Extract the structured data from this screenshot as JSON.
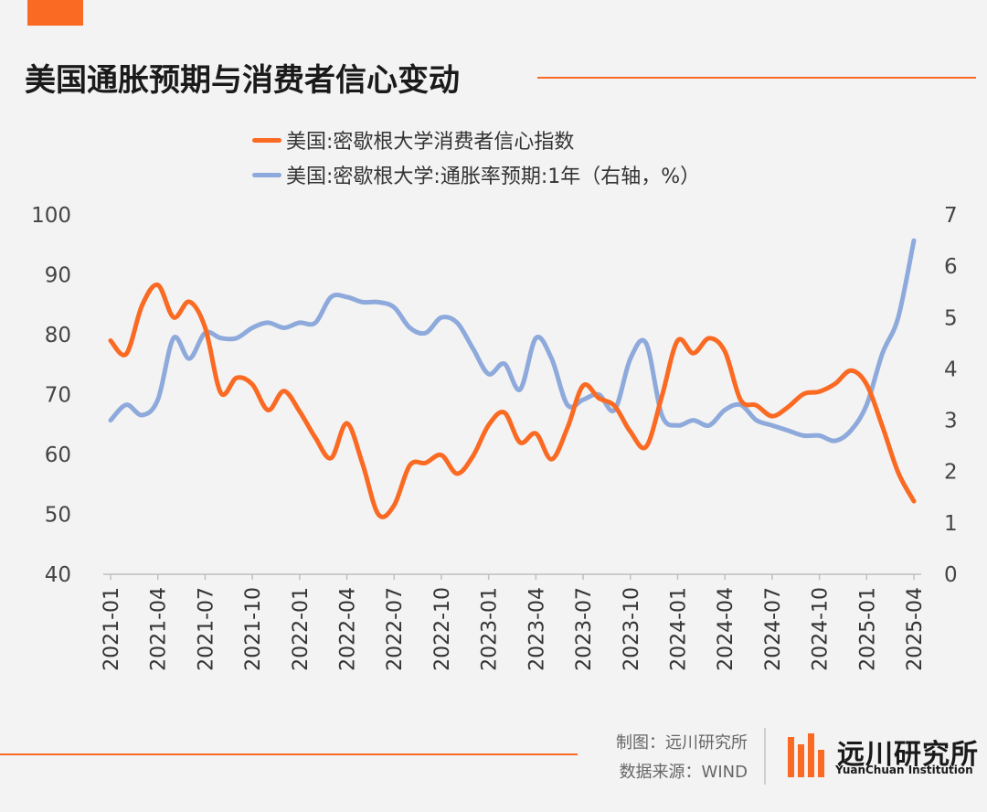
{
  "header": {
    "title": "美国通胀预期与消费者信心变动",
    "accent_color": "#fa6a23"
  },
  "chart_data": {
    "type": "line",
    "title": "美国通胀预期与消费者信心变动",
    "xlabel": "",
    "ylabel": "",
    "ylim": [
      40,
      100
    ],
    "y2lim": [
      0,
      7
    ],
    "yticks": [
      "100",
      "90",
      "80",
      "70",
      "60",
      "50",
      "40"
    ],
    "y2ticks": [
      "7",
      "6",
      "5",
      "4",
      "3",
      "2",
      "1",
      "0"
    ],
    "xticks": [
      "2021-01",
      "2021-04",
      "2021-07",
      "2021-10",
      "2022-01",
      "2022-04",
      "2022-07",
      "2022-10",
      "2023-01",
      "2023-04",
      "2023-07",
      "2023-10",
      "2024-01",
      "2024-04",
      "2024-07",
      "2024-10",
      "2025-01",
      "2025-04"
    ],
    "grid": false,
    "legend_position": "top",
    "x": [
      "2021-01",
      "2021-02",
      "2021-03",
      "2021-04",
      "2021-05",
      "2021-06",
      "2021-07",
      "2021-08",
      "2021-09",
      "2021-10",
      "2021-11",
      "2021-12",
      "2022-01",
      "2022-02",
      "2022-03",
      "2022-04",
      "2022-05",
      "2022-06",
      "2022-07",
      "2022-08",
      "2022-09",
      "2022-10",
      "2022-11",
      "2022-12",
      "2023-01",
      "2023-02",
      "2023-03",
      "2023-04",
      "2023-05",
      "2023-06",
      "2023-07",
      "2023-08",
      "2023-09",
      "2023-10",
      "2023-11",
      "2023-12",
      "2024-01",
      "2024-02",
      "2024-03",
      "2024-04",
      "2024-05",
      "2024-06",
      "2024-07",
      "2024-08",
      "2024-09",
      "2024-10",
      "2024-11",
      "2024-12",
      "2025-01",
      "2025-02",
      "2025-03",
      "2025-04"
    ],
    "series": [
      {
        "name": "美国:密歇根大学消费者信心指数",
        "axis": "left",
        "color": "#fa6a23",
        "values": [
          79.0,
          76.8,
          84.9,
          88.3,
          82.9,
          85.5,
          81.2,
          70.3,
          72.8,
          71.7,
          67.4,
          70.6,
          67.2,
          62.8,
          59.4,
          65.2,
          58.4,
          50.0,
          51.5,
          58.2,
          58.6,
          59.9,
          56.8,
          59.7,
          64.9,
          67.0,
          62.0,
          63.5,
          59.2,
          64.4,
          71.5,
          69.4,
          68.1,
          63.8,
          61.3,
          69.7,
          79.0,
          76.9,
          79.4,
          77.2,
          69.1,
          68.2,
          66.4,
          67.9,
          70.1,
          70.5,
          71.8,
          74.0,
          71.7,
          64.7,
          57.0,
          52.2
        ]
      },
      {
        "name": "美国:密歇根大学:通胀率预期:1年（右轴，%）",
        "axis": "right",
        "color": "#8ea9db",
        "values": [
          3.0,
          3.3,
          3.1,
          3.4,
          4.6,
          4.2,
          4.7,
          4.6,
          4.6,
          4.8,
          4.9,
          4.8,
          4.9,
          4.9,
          5.4,
          5.4,
          5.3,
          5.3,
          5.2,
          4.8,
          4.7,
          5.0,
          4.9,
          4.4,
          3.9,
          4.1,
          3.6,
          4.6,
          4.2,
          3.3,
          3.4,
          3.5,
          3.2,
          4.2,
          4.5,
          3.1,
          2.9,
          3.0,
          2.9,
          3.2,
          3.3,
          3.0,
          2.9,
          2.8,
          2.7,
          2.7,
          2.6,
          2.8,
          3.3,
          4.3,
          5.0,
          6.5
        ]
      }
    ]
  },
  "footer": {
    "credit_line1": "制图：远川研究所",
    "credit_line2": "数据来源：WIND",
    "logo_name": "远川研究所",
    "logo_en": "YuanChuan Institution"
  }
}
